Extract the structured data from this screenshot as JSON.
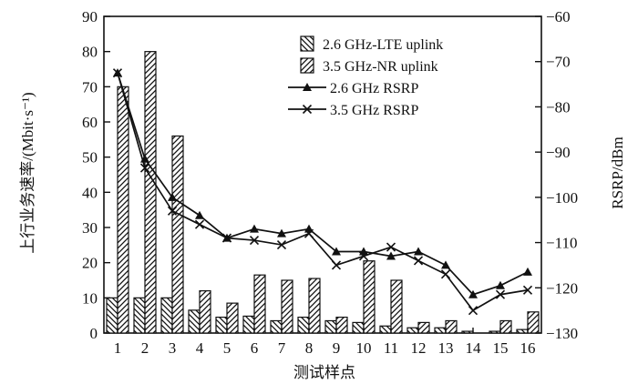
{
  "chart_data": {
    "type": "bar",
    "xlabel": "测试样点",
    "ylabel": "上行业务速率/(Mbit·s⁻¹)",
    "ylabel_right": "RSRP/dBm",
    "categories": [
      "1",
      "2",
      "3",
      "4",
      "5",
      "6",
      "7",
      "8",
      "9",
      "10",
      "11",
      "12",
      "13",
      "14",
      "15",
      "16"
    ],
    "ylim": [
      0,
      90
    ],
    "yticks": [
      0,
      10,
      20,
      30,
      40,
      50,
      60,
      70,
      80,
      90
    ],
    "y2lim": [
      -130,
      -60
    ],
    "y2ticks": [
      -130,
      -120,
      -110,
      -100,
      -90,
      -80,
      -70,
      -60
    ],
    "legend_position": "top-right",
    "series": [
      {
        "name": "2.6 GHz-LTE uplink",
        "kind": "bar",
        "hatch": "backslash",
        "axis": "left",
        "values": [
          10,
          10,
          10,
          6.5,
          4.5,
          4.8,
          3.5,
          4.5,
          3.5,
          3,
          2,
          1.5,
          1.5,
          0.5,
          0.5,
          1
        ]
      },
      {
        "name": "3.5 GHz-NR uplink",
        "kind": "bar",
        "hatch": "slash",
        "axis": "left",
        "values": [
          70,
          80,
          56,
          12,
          8.5,
          16.5,
          15,
          15.5,
          4.5,
          20.5,
          15,
          3,
          3.5,
          0,
          3.5,
          6
        ]
      },
      {
        "name": "2.6 GHz RSRP",
        "kind": "line",
        "marker": "triangle",
        "axis": "right",
        "values": [
          -72.5,
          -91.5,
          -100,
          -104,
          -109,
          -107,
          -108,
          -107,
          -112,
          -112,
          -113,
          -112,
          -115,
          -121.5,
          -119.5,
          -116.5
        ]
      },
      {
        "name": "3.5 GHz RSRP",
        "kind": "line",
        "marker": "x",
        "axis": "right",
        "values": [
          -72.5,
          -93.5,
          -103,
          -106,
          -109,
          -109.5,
          -110.5,
          -108,
          -115,
          -113,
          -111,
          -114,
          -117,
          -125,
          -121.5,
          -120.5
        ]
      }
    ]
  }
}
